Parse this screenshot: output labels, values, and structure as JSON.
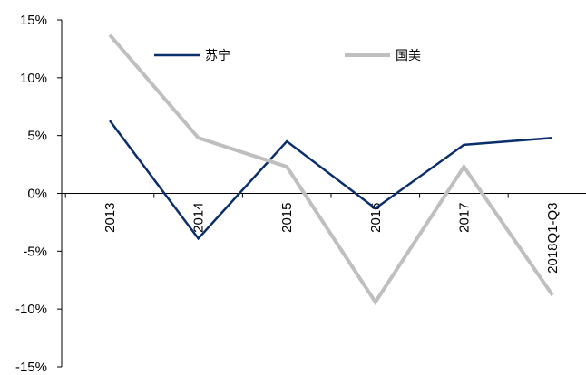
{
  "chart_data": {
    "type": "line",
    "title": "",
    "xlabel": "",
    "ylabel": "",
    "categories": [
      "2013",
      "2014",
      "2015",
      "2016",
      "2017",
      "2018Q1-Q3"
    ],
    "ylim": [
      -15,
      15
    ],
    "yticks": [
      {
        "value": 15,
        "label": "15%"
      },
      {
        "value": 10,
        "label": "10%"
      },
      {
        "value": 5,
        "label": "5%"
      },
      {
        "value": 0,
        "label": "0%"
      },
      {
        "value": -5,
        "label": "-5%"
      },
      {
        "value": -10,
        "label": "-10%"
      },
      {
        "value": -15,
        "label": "-15%"
      }
    ],
    "series": [
      {
        "name": "苏宁",
        "color": "#0b2f6b",
        "values": [
          6.3,
          -3.9,
          4.5,
          -1.3,
          4.2,
          4.8
        ]
      },
      {
        "name": "国美",
        "color": "#bfbfbf",
        "values": [
          13.7,
          4.8,
          2.3,
          -9.4,
          2.3,
          -8.8
        ]
      }
    ],
    "legend_position": "top",
    "grid": false
  }
}
